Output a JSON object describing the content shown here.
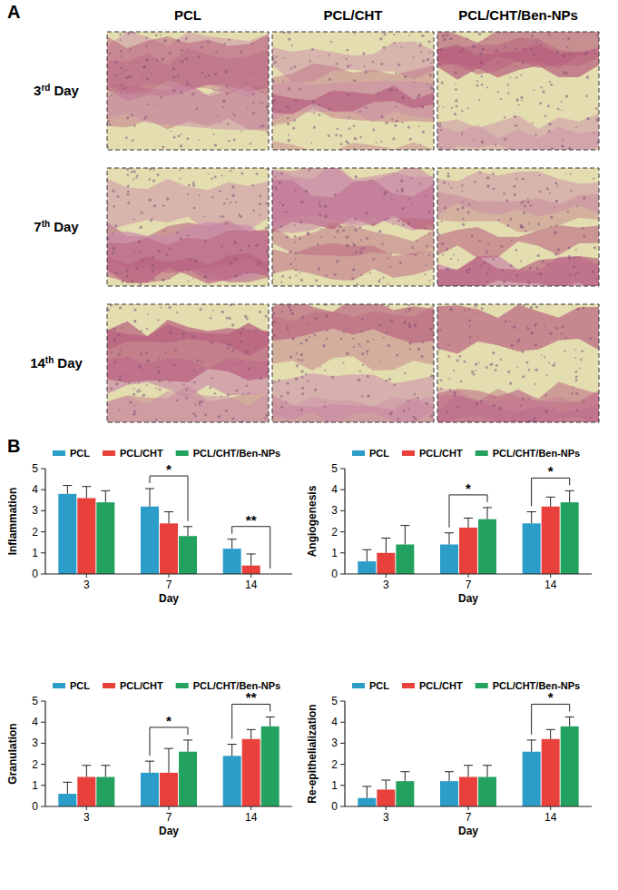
{
  "figure": {
    "panel_a": {
      "label": "A",
      "columns": [
        "PCL",
        "PCL/CHT",
        "PCL/CHT/Ben-NPs"
      ],
      "rows": [
        {
          "number": "3",
          "suffix": "rd",
          "word": "Day"
        },
        {
          "number": "7",
          "suffix": "th",
          "word": "Day"
        },
        {
          "number": "14",
          "suffix": "th",
          "word": "Day"
        }
      ]
    },
    "panel_b": {
      "label": "B"
    }
  },
  "chart_data": [
    {
      "type": "bar",
      "y_label": "Inflammation",
      "x_label": "Day",
      "categories": [
        "3",
        "7",
        "14"
      ],
      "ylim": [
        0,
        5
      ],
      "yticks": [
        0,
        1,
        2,
        3,
        4,
        5
      ],
      "grid": false,
      "legend": "top",
      "series": [
        {
          "name": "PCL",
          "color": "#2b9dc8",
          "values": [
            3.8,
            3.2,
            1.2
          ],
          "errors": [
            0.4,
            0.85,
            0.45
          ]
        },
        {
          "name": "PCL/CHT",
          "color": "#e8403a",
          "values": [
            3.6,
            2.4,
            0.4
          ],
          "errors": [
            0.55,
            0.55,
            0.55
          ]
        },
        {
          "name": "PCL/CHT/Ben-NPs",
          "color": "#22a15f",
          "values": [
            3.4,
            1.8,
            0
          ],
          "errors": [
            0.55,
            0.45,
            0
          ]
        }
      ],
      "annotations": [
        {
          "category": "7",
          "from": "PCL",
          "to": "PCL/CHT/Ben-NPs",
          "text": "*"
        },
        {
          "category": "14",
          "from": "PCL",
          "to": "PCL/CHT/Ben-NPs",
          "text": "**"
        }
      ]
    },
    {
      "type": "bar",
      "y_label": "Angiogenesis",
      "x_label": "Day",
      "categories": [
        "3",
        "7",
        "14"
      ],
      "ylim": [
        0,
        5
      ],
      "yticks": [
        0,
        1,
        2,
        3,
        4,
        5
      ],
      "grid": false,
      "legend": "top",
      "series": [
        {
          "name": "PCL",
          "color": "#2b9dc8",
          "values": [
            0.6,
            1.4,
            2.4
          ],
          "errors": [
            0.55,
            0.55,
            0.55
          ]
        },
        {
          "name": "PCL/CHT",
          "color": "#e8403a",
          "values": [
            1.0,
            2.2,
            3.2
          ],
          "errors": [
            0.7,
            0.45,
            0.45
          ]
        },
        {
          "name": "PCL/CHT/Ben-NPs",
          "color": "#22a15f",
          "values": [
            1.4,
            2.6,
            3.4
          ],
          "errors": [
            0.9,
            0.55,
            0.55
          ]
        }
      ],
      "annotations": [
        {
          "category": "7",
          "from": "PCL",
          "to": "PCL/CHT/Ben-NPs",
          "text": "*"
        },
        {
          "category": "14",
          "from": "PCL",
          "to": "PCL/CHT/Ben-NPs",
          "text": "*"
        }
      ]
    },
    {
      "type": "bar",
      "y_label": "Granulation",
      "x_label": "Day",
      "categories": [
        "3",
        "7",
        "14"
      ],
      "ylim": [
        0,
        5
      ],
      "yticks": [
        0,
        1,
        2,
        3,
        4,
        5
      ],
      "grid": false,
      "legend": "top",
      "series": [
        {
          "name": "PCL",
          "color": "#2b9dc8",
          "values": [
            0.6,
            1.6,
            2.4
          ],
          "errors": [
            0.55,
            0.55,
            0.55
          ]
        },
        {
          "name": "PCL/CHT",
          "color": "#e8403a",
          "values": [
            1.4,
            1.6,
            3.2
          ],
          "errors": [
            0.55,
            1.15,
            0.45
          ]
        },
        {
          "name": "PCL/CHT/Ben-NPs",
          "color": "#22a15f",
          "values": [
            1.4,
            2.6,
            3.8
          ],
          "errors": [
            0.55,
            0.55,
            0.45
          ]
        }
      ],
      "annotations": [
        {
          "category": "7",
          "from": "PCL",
          "to": "PCL/CHT/Ben-NPs",
          "text": "*"
        },
        {
          "category": "14",
          "from": "PCL",
          "to": "PCL/CHT/Ben-NPs",
          "text": "**"
        }
      ]
    },
    {
      "type": "bar",
      "y_label": "Re-epithelialization",
      "x_label": "Day",
      "categories": [
        "3",
        "7",
        "14"
      ],
      "ylim": [
        0,
        5
      ],
      "yticks": [
        0,
        1,
        2,
        3,
        4,
        5
      ],
      "grid": false,
      "legend": "top",
      "series": [
        {
          "name": "PCL",
          "color": "#2b9dc8",
          "values": [
            0.4,
            1.2,
            2.6
          ],
          "errors": [
            0.55,
            0.45,
            0.55
          ]
        },
        {
          "name": "PCL/CHT",
          "color": "#e8403a",
          "values": [
            0.8,
            1.4,
            3.2
          ],
          "errors": [
            0.45,
            0.55,
            0.45
          ]
        },
        {
          "name": "PCL/CHT/Ben-NPs",
          "color": "#22a15f",
          "values": [
            1.2,
            1.4,
            3.8
          ],
          "errors": [
            0.45,
            0.55,
            0.45
          ]
        }
      ],
      "annotations": [
        {
          "category": "14",
          "from": "PCL",
          "to": "PCL/CHT/Ben-NPs",
          "text": "*"
        }
      ]
    }
  ]
}
